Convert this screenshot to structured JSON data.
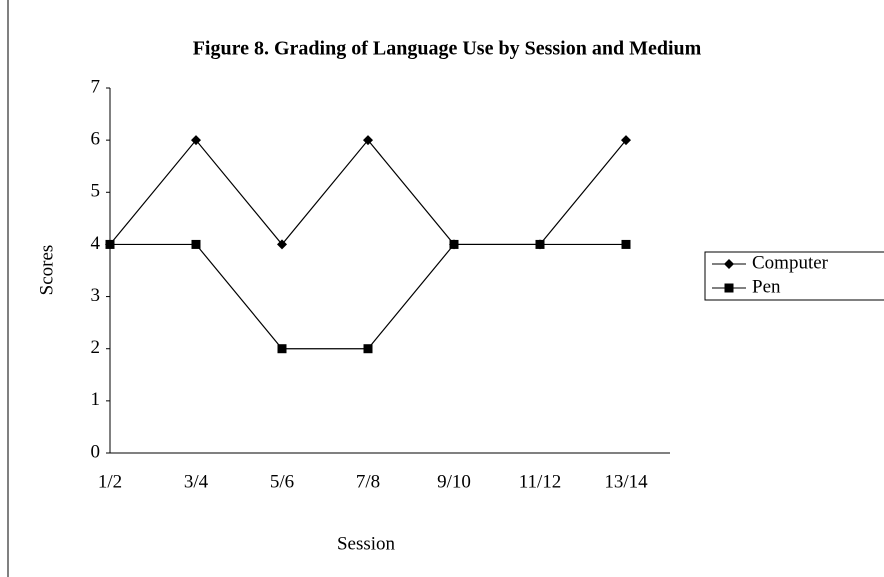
{
  "chart_data": {
    "type": "line",
    "title": "Figure 8. Grading of Language Use by Session and Medium",
    "x_label": "Session",
    "y_label": "Scores",
    "categories": [
      "1/2",
      "3/4",
      "5/6",
      "7/8",
      "9/10",
      "11/12",
      "13/14"
    ],
    "series": [
      {
        "name": "Computer",
        "color": "#000000",
        "marker": "diamond",
        "values": [
          4,
          6,
          4,
          6,
          4,
          4,
          6
        ]
      },
      {
        "name": "Pen",
        "color": "#000000",
        "marker": "square",
        "values": [
          4,
          4,
          2,
          2,
          4,
          4,
          4
        ]
      }
    ],
    "ylim": [
      0,
      7
    ],
    "yticks": [
      0,
      1,
      2,
      3,
      4,
      5,
      6,
      7
    ],
    "grid": false,
    "legend": "right"
  }
}
